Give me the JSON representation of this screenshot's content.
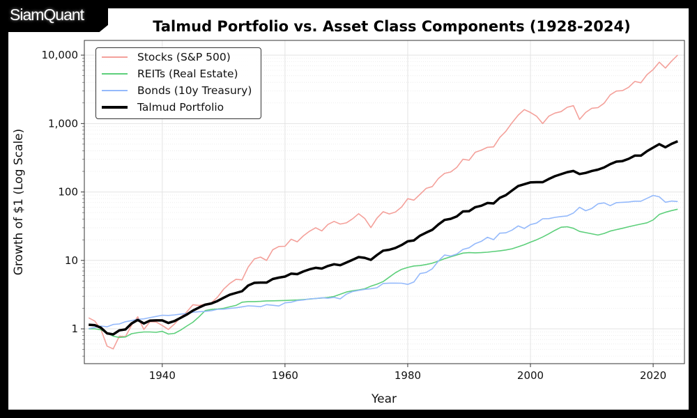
{
  "logo_text": "SiamQuant",
  "chart_data": {
    "type": "line",
    "title": "Talmud Portfolio vs. Asset Class Components (1928-2024)",
    "xlabel": "Year",
    "ylabel": "Growth of $1 (Log Scale)",
    "yscale": "log",
    "xlim": [
      1927.3,
      2025.1
    ],
    "ylim": [
      0.31,
      16400
    ],
    "xticks": [
      1940,
      1960,
      1980,
      2000,
      2020
    ],
    "yticks": [
      1,
      10,
      100,
      1000,
      10000
    ],
    "ytick_labels": [
      "1",
      "10",
      "100",
      "1,000",
      "10,000"
    ],
    "grid": true,
    "legend_position": "top-left",
    "x_start": 1928,
    "series": [
      {
        "name": "Stocks (S&P 500)",
        "color": "#f4a09a",
        "width": 1.6,
        "values": [
          1.45,
          1.3,
          0.98,
          0.56,
          0.51,
          0.78,
          0.77,
          1.13,
          1.5,
          0.98,
          1.27,
          1.26,
          1.12,
          0.98,
          1.18,
          1.48,
          1.77,
          2.25,
          2.2,
          2.3,
          2.4,
          2.9,
          3.8,
          4.6,
          5.3,
          5.2,
          8.0,
          10.5,
          11.2,
          10.0,
          14.3,
          16.0,
          16.1,
          20.4,
          18.7,
          22.9,
          26.7,
          30.0,
          27.0,
          33.5,
          37.2,
          34.0,
          35.4,
          40.4,
          48.1,
          41.0,
          30.2,
          41.5,
          51.5,
          47.8,
          50.9,
          60.3,
          79.8,
          75.9,
          92.2,
          112.9,
          119.9,
          157.6,
          187,
          196,
          229,
          301,
          291,
          380,
          409,
          450,
          456,
          627,
          771,
          1028,
          1322,
          1600,
          1454,
          1281,
          998,
          1284,
          1424,
          1494,
          1730,
          1825,
          1150,
          1454,
          1673,
          1708,
          1982,
          2624,
          2983,
          3024,
          3386,
          4125,
          3944,
          5186,
          6140,
          7902,
          6471,
          8172,
          10000
        ]
      },
      {
        "name": "REITs (Real Estate)",
        "color": "#5ccf7a",
        "width": 1.6,
        "values": [
          1.0,
          1.0,
          0.97,
          0.87,
          0.78,
          0.75,
          0.76,
          0.85,
          0.88,
          0.9,
          0.9,
          0.89,
          0.92,
          0.84,
          0.86,
          0.96,
          1.1,
          1.25,
          1.5,
          1.85,
          1.92,
          1.95,
          2.0,
          2.1,
          2.2,
          2.45,
          2.5,
          2.5,
          2.52,
          2.56,
          2.57,
          2.58,
          2.6,
          2.62,
          2.64,
          2.68,
          2.72,
          2.78,
          2.82,
          2.88,
          2.98,
          3.2,
          3.45,
          3.6,
          3.7,
          3.85,
          4.2,
          4.5,
          4.9,
          5.7,
          6.6,
          7.4,
          7.9,
          8.3,
          8.4,
          8.7,
          9.1,
          9.8,
          10.6,
          11.3,
          12.0,
          12.8,
          13.0,
          12.9,
          13.0,
          13.2,
          13.5,
          13.8,
          14.2,
          14.8,
          15.8,
          17.0,
          18.5,
          20.0,
          22.0,
          24.5,
          27.5,
          30.5,
          31.0,
          29.5,
          26.5,
          25.5,
          24.5,
          23.5,
          24.8,
          26.8,
          28.2,
          29.5,
          31.0,
          32.5,
          34.0,
          35.5,
          39.0,
          47.0,
          50.5,
          53.5,
          56.0
        ]
      },
      {
        "name": "Bonds (10y Treasury)",
        "color": "#94b9fb",
        "width": 1.6,
        "values": [
          1.01,
          1.05,
          1.1,
          1.07,
          1.16,
          1.18,
          1.27,
          1.32,
          1.38,
          1.4,
          1.46,
          1.52,
          1.58,
          1.57,
          1.6,
          1.64,
          1.68,
          1.75,
          1.78,
          1.8,
          1.84,
          1.93,
          1.94,
          1.99,
          2.03,
          2.1,
          2.17,
          2.15,
          2.11,
          2.26,
          2.21,
          2.16,
          2.4,
          2.45,
          2.59,
          2.64,
          2.74,
          2.77,
          2.85,
          2.8,
          2.89,
          2.74,
          3.21,
          3.51,
          3.64,
          3.78,
          3.85,
          3.99,
          4.6,
          4.66,
          4.66,
          4.65,
          4.47,
          4.83,
          6.42,
          6.66,
          7.55,
          9.82,
          11.98,
          11.6,
          12.4,
          14.5,
          15.3,
          17.6,
          19.0,
          21.8,
          20.1,
          25.0,
          25.3,
          27.7,
          31.9,
          29.3,
          33.4,
          35.1,
          40.6,
          40.8,
          42.6,
          43.8,
          44.7,
          49.2,
          59.6,
          53.2,
          57.5,
          67.1,
          69.3,
          63.1,
          69.8,
          70.7,
          71.4,
          73.4,
          73.4,
          80.8,
          89.0,
          85.1,
          70.8,
          73.7,
          72.5
        ]
      },
      {
        "name": "Talmud Portfolio",
        "color": "#000000",
        "width": 3.5,
        "values": [
          1.15,
          1.13,
          1.04,
          0.86,
          0.83,
          0.95,
          0.98,
          1.2,
          1.35,
          1.2,
          1.32,
          1.33,
          1.33,
          1.22,
          1.3,
          1.45,
          1.62,
          1.85,
          2.05,
          2.25,
          2.35,
          2.55,
          2.85,
          3.15,
          3.35,
          3.55,
          4.3,
          4.7,
          4.75,
          4.75,
          5.35,
          5.6,
          5.8,
          6.4,
          6.3,
          6.9,
          7.4,
          7.8,
          7.6,
          8.3,
          8.8,
          8.5,
          9.3,
          10.2,
          11.2,
          10.9,
          10.2,
          12.0,
          13.9,
          14.3,
          15.2,
          16.8,
          19.0,
          19.6,
          23.0,
          25.5,
          28.0,
          33.5,
          39.0,
          40.5,
          44.0,
          52.0,
          52.5,
          60.0,
          63.0,
          69.0,
          68.0,
          82.0,
          90.0,
          105,
          122,
          130,
          138,
          139,
          139,
          155,
          170,
          182,
          195,
          203,
          183,
          190,
          203,
          212,
          228,
          255,
          278,
          283,
          305,
          340,
          340,
          395,
          445,
          500,
          450,
          505,
          550
        ]
      }
    ]
  }
}
